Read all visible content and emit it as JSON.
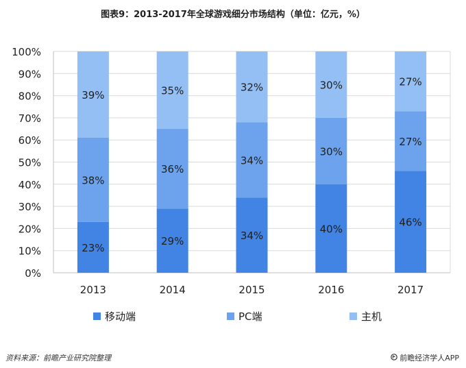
{
  "title": "图表9：2013-2017年全球游戏细分市场结构（单位：亿元，%）",
  "chart_data": {
    "type": "bar",
    "stacked": true,
    "categories": [
      "2013",
      "2014",
      "2015",
      "2016",
      "2017"
    ],
    "series": [
      {
        "name": "移动端",
        "values": [
          23,
          29,
          34,
          40,
          46
        ],
        "color": "#4184e4"
      },
      {
        "name": "PC端",
        "values": [
          38,
          36,
          34,
          30,
          27
        ],
        "color": "#6ca3ec"
      },
      {
        "name": "主机",
        "values": [
          39,
          35,
          32,
          30,
          27
        ],
        "color": "#94bff4"
      }
    ],
    "data_labels": [
      [
        "23%",
        "29%",
        "34%",
        "40%",
        "46%"
      ],
      [
        "38%",
        "36%",
        "34%",
        "30%",
        "27%"
      ],
      [
        "39%",
        "35%",
        "32%",
        "30%",
        "27%"
      ]
    ],
    "ytick_labels": [
      "0%",
      "10%",
      "20%",
      "30%",
      "40%",
      "50%",
      "60%",
      "70%",
      "80%",
      "90%",
      "100%"
    ],
    "ylim": [
      0,
      100
    ],
    "grid": true,
    "legend_position": "bottom"
  },
  "footer": {
    "source": "资料来源：前瞻产业研究院整理",
    "brand": "前瞻经济学人APP",
    "brand_icon": "brand-logo-icon"
  }
}
